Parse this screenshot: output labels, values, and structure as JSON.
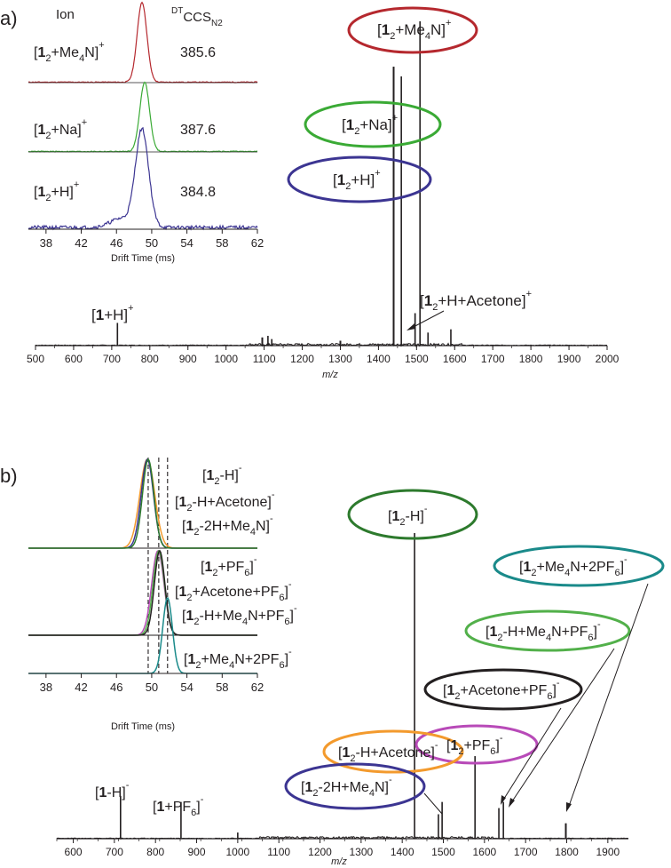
{
  "chart_data": [
    {
      "panel": "a)",
      "type": "line",
      "xlabel": "m/z",
      "xlim": [
        500,
        2000
      ],
      "x_ticks": [
        "500",
        "600",
        "700",
        "800",
        "900",
        "1000",
        "1100",
        "1200",
        "1300",
        "1400",
        "1500",
        "1600",
        "1700",
        "1800",
        "1900",
        "2000"
      ],
      "peaks": [
        {
          "x": 715,
          "y": 0.07
        },
        {
          "x": 1095,
          "y": 0.025
        },
        {
          "x": 1110,
          "y": 0.03
        },
        {
          "x": 1120,
          "y": 0.02
        },
        {
          "x": 1300,
          "y": 0.015
        },
        {
          "x": 1440,
          "y": 0.86
        },
        {
          "x": 1460,
          "y": 0.83
        },
        {
          "x": 1496,
          "y": 0.1
        },
        {
          "x": 1509,
          "y": 1.0
        },
        {
          "x": 1530,
          "y": 0.04
        },
        {
          "x": 1590,
          "y": 0.05
        }
      ],
      "annotations": [
        {
          "id": "a_me4n",
          "label": "[12+Me4N]+",
          "x": 1509,
          "ellipse": "#b5282e"
        },
        {
          "id": "a_na",
          "label": "[12+Na]+",
          "x": 1460,
          "ellipse": "#3aaa35"
        },
        {
          "id": "a_h",
          "label": "[12+H]+",
          "x": 1440,
          "ellipse": "#3c3592"
        },
        {
          "id": "a_acetone",
          "label": "[12+H+Acetone]+",
          "x": 1496,
          "ellipse": null
        },
        {
          "id": "a_monomer",
          "label": "[1+H]+",
          "x": 715,
          "ellipse": null
        }
      ],
      "inset": {
        "xlabel": "Drift Time (ms)",
        "xlim": [
          36,
          62
        ],
        "x_ticks": [
          38,
          42,
          46,
          50,
          54,
          58,
          62
        ],
        "header_ion": "Ion",
        "header_ccs": "DTCCSN2",
        "traces": [
          {
            "label": "[12+Me4N]+",
            "ccs": "385.6",
            "color": "#b5282e",
            "peak": 48.9,
            "width": 0.55
          },
          {
            "label": "[12+Na]+",
            "ccs": "387.6",
            "color": "#3aaa35",
            "peak": 49.2,
            "width": 0.55
          },
          {
            "label": "[12+H]+",
            "ccs": "384.8",
            "color": "#3c3592",
            "peak": 48.9,
            "width": 0.75
          }
        ]
      }
    },
    {
      "panel": "b)",
      "type": "line",
      "xlabel": "m/z",
      "xlim": [
        560,
        1950
      ],
      "x_ticks": [
        "600",
        "700",
        "800",
        "900",
        "1000",
        "1100",
        "1200",
        "1300",
        "1400",
        "1500",
        "1600",
        "1700",
        "1800",
        "1900"
      ],
      "peaks": [
        {
          "x": 715,
          "y": 0.14
        },
        {
          "x": 862,
          "y": 0.12
        },
        {
          "x": 1000,
          "y": 0.02
        },
        {
          "x": 1430,
          "y": 1.0
        },
        {
          "x": 1488,
          "y": 0.08
        },
        {
          "x": 1497,
          "y": 0.12
        },
        {
          "x": 1577,
          "y": 0.27
        },
        {
          "x": 1635,
          "y": 0.1
        },
        {
          "x": 1646,
          "y": 0.12
        },
        {
          "x": 1798,
          "y": 0.05
        }
      ],
      "annotations": [
        {
          "id": "b_h",
          "label": "[12-H]-",
          "x": 1430,
          "ellipse": "#2d7a2d"
        },
        {
          "id": "b_me4n2pf6",
          "label": "[12+Me4N+2PF6]-",
          "x": 1798,
          "ellipse": "#1a8a8a"
        },
        {
          "id": "b_hme4npf6",
          "label": "[12-H+Me4N+PF6]-",
          "x": 1646,
          "ellipse": "#52b04a"
        },
        {
          "id": "b_acetonepf6",
          "label": "[12+Acetone+PF6]-",
          "x": 1635,
          "ellipse": "#231f20"
        },
        {
          "id": "b_pf6",
          "label": "[12+PF6]-",
          "x": 1577,
          "ellipse": "#b84ab8"
        },
        {
          "id": "b_hacetone",
          "label": "[12-H+Acetone]-",
          "x": 1497,
          "ellipse": "#f39a2d"
        },
        {
          "id": "b_2hme4n",
          "label": "[12-2H+Me4N]-",
          "x": 1488,
          "ellipse": "#3c3592"
        },
        {
          "id": "b_monomer",
          "label": "[1-H]-",
          "x": 715,
          "ellipse": null
        },
        {
          "id": "b_monopf6",
          "label": "[1+PF6]-",
          "x": 862,
          "ellipse": null
        }
      ],
      "inset": {
        "xlabel": "Drift Time (ms)",
        "xlim": [
          36,
          62
        ],
        "x_ticks": [
          38,
          42,
          46,
          50,
          54,
          58,
          62
        ],
        "group_labels": [
          [
            "[12-H]-",
            "[12-H+Acetone]-",
            "[12-2H+Me4N]-"
          ],
          [
            "[12+PF6]-",
            "[12+Acetone+PF6]-",
            "[12-H+Me4N+PF6]-"
          ],
          [
            "[12+Me4N+2PF6]-"
          ]
        ],
        "reference_lines": [
          49.6,
          50.8,
          51.8
        ],
        "traces": [
          {
            "group": 0,
            "color": "#f39a2d",
            "peak": 49.5,
            "width": 0.85
          },
          {
            "group": 0,
            "color": "#3c3592",
            "peak": 49.5,
            "width": 0.7
          },
          {
            "group": 0,
            "color": "#2d7a2d",
            "peak": 49.6,
            "width": 0.65
          },
          {
            "group": 1,
            "color": "#b84ab8",
            "peak": 50.7,
            "width": 0.7
          },
          {
            "group": 1,
            "color": "#52b04a",
            "peak": 50.8,
            "width": 0.65
          },
          {
            "group": 1,
            "color": "#231f20",
            "peak": 50.9,
            "width": 0.6
          },
          {
            "group": 2,
            "color": "#1a8a8a",
            "peak": 51.8,
            "width": 0.55
          }
        ]
      }
    }
  ]
}
